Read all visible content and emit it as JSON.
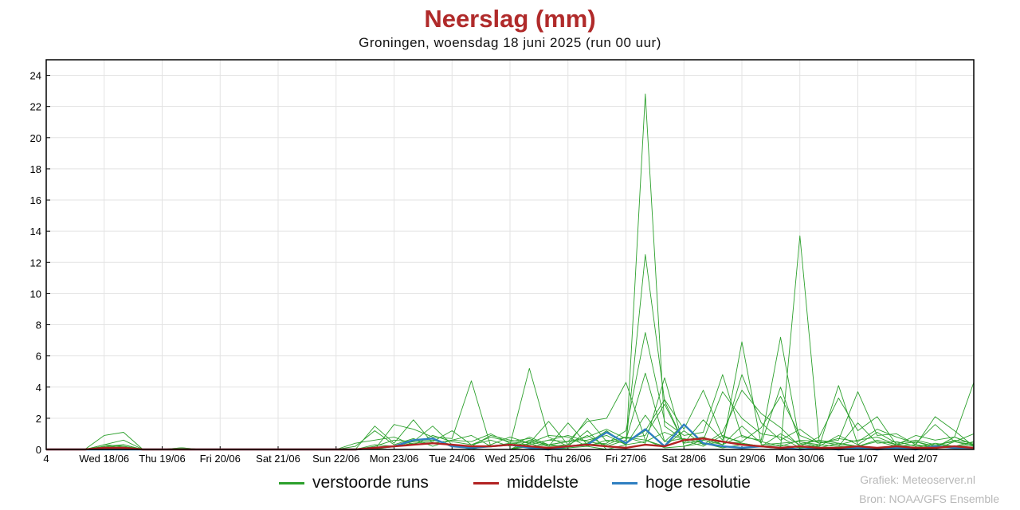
{
  "chart_data": {
    "type": "line",
    "title": "Neerslag (mm)",
    "subtitle": "Groningen, woensdag 18 juni 2025 (run 00 uur)",
    "ylim": [
      0,
      25
    ],
    "yticks": [
      0,
      2,
      4,
      6,
      8,
      10,
      12,
      14,
      16,
      18,
      20,
      22,
      24
    ],
    "xlim": [
      0,
      48
    ],
    "x_ticklabels": [
      {
        "x": 0,
        "label": "4"
      },
      {
        "x": 3,
        "label": "Wed 18/06"
      },
      {
        "x": 6,
        "label": "Thu 19/06"
      },
      {
        "x": 9,
        "label": "Fri 20/06"
      },
      {
        "x": 12,
        "label": "Sat 21/06"
      },
      {
        "x": 15,
        "label": "Sun 22/06"
      },
      {
        "x": 18,
        "label": "Mon 23/06"
      },
      {
        "x": 21,
        "label": "Tue 24/06"
      },
      {
        "x": 24,
        "label": "Wed 25/06"
      },
      {
        "x": 27,
        "label": "Thu 26/06"
      },
      {
        "x": 30,
        "label": "Fri 27/06"
      },
      {
        "x": 33,
        "label": "Sat 28/06"
      },
      {
        "x": 36,
        "label": "Sun 29/06"
      },
      {
        "x": 39,
        "label": "Mon 30/06"
      },
      {
        "x": 42,
        "label": "Tue 1/07"
      },
      {
        "x": 45,
        "label": "Wed 2/07"
      }
    ],
    "grid": true,
    "legend_position": "bottom",
    "series_colors": {
      "members": "#2ca02c",
      "mean": "#b22222",
      "hires": "#2f7fc1"
    },
    "legend": {
      "members_label": "verstoorde runs",
      "mean_label": "middelste",
      "hires_label": "hoge resolutie"
    },
    "members": [
      [
        0,
        0,
        0,
        0.3,
        0.2,
        0,
        0,
        0,
        0,
        0,
        0,
        0,
        0,
        0,
        0,
        0,
        0,
        0,
        0.2,
        0.5,
        0.6,
        0.3,
        0,
        0.3,
        0.8,
        0.4,
        0,
        0.1,
        0.2,
        0,
        0,
        22.8,
        1.5,
        0.6,
        0.2,
        0.9,
        0.4,
        0.2,
        0.3,
        0.1,
        0.3,
        0.2,
        0.1,
        0,
        0.1,
        0.1,
        0,
        0.5,
        0.2
      ],
      [
        0,
        0,
        0,
        0.9,
        1.1,
        0,
        0,
        0.1,
        0,
        0,
        0,
        0,
        0,
        0,
        0,
        0,
        0,
        0,
        1.6,
        1.3,
        0.8,
        0.7,
        4.4,
        0.2,
        0.3,
        5.2,
        0.8,
        0.2,
        1.2,
        0,
        0.3,
        12.5,
        3.1,
        0.4,
        0.6,
        3.7,
        2.0,
        1.0,
        0.8,
        0.1,
        0.2,
        0.9,
        0.3,
        0,
        0.3,
        0.5,
        0.1,
        0.8,
        0.3
      ],
      [
        0,
        0,
        0,
        0.3,
        0.6,
        0,
        0,
        0,
        0,
        0,
        0,
        0,
        0,
        0,
        0,
        0,
        0,
        1.5,
        0.4,
        1.9,
        0.4,
        0.6,
        0.9,
        0.2,
        0.4,
        0.5,
        0.2,
        1.7,
        0.3,
        0.4,
        1.2,
        7.5,
        1.8,
        0.9,
        1.1,
        4.8,
        0.8,
        0.6,
        7.2,
        0.4,
        0.1,
        0.4,
        0.2,
        0.5,
        0.2,
        0.3,
        0.1,
        0.2,
        0.1
      ],
      [
        0,
        0,
        0,
        0.2,
        0.1,
        0,
        0,
        0,
        0,
        0,
        0,
        0,
        0,
        0,
        0,
        0,
        0,
        0.3,
        0.2,
        0.4,
        0.5,
        1.2,
        0.3,
        0.8,
        0.5,
        0.7,
        0.2,
        0.3,
        0.9,
        0.2,
        0.6,
        4.9,
        0.5,
        1.6,
        0.3,
        1.1,
        3.8,
        2.3,
        1.4,
        0.2,
        0.8,
        3.3,
        1.2,
        2.1,
        0.3,
        0.9,
        0.6,
        0.8,
        4.3
      ],
      [
        0,
        0,
        0,
        0.1,
        0.3,
        0,
        0,
        0,
        0,
        0,
        0,
        0,
        0,
        0,
        0,
        0,
        0,
        0.2,
        0.6,
        0.5,
        1.5,
        0.3,
        0.2,
        0.9,
        0.6,
        0.4,
        0.9,
        0.8,
        0.2,
        0.6,
        0.4,
        1.2,
        3.2,
        1.3,
        3.8,
        0.8,
        0.5,
        1.4,
        3.4,
        0.9,
        0.4,
        0.6,
        3.7,
        0.9,
        1.0,
        0.3,
        2.1,
        1.2,
        0.2
      ],
      [
        0,
        0,
        0,
        0.2,
        0.3,
        0,
        0,
        0.1,
        0,
        0,
        0,
        0,
        0,
        0,
        0,
        0,
        0.2,
        1.2,
        0.3,
        0.7,
        0.2,
        0.6,
        0.5,
        1.0,
        0.4,
        0.3,
        0.6,
        0.5,
        0.8,
        1.3,
        0.7,
        0.9,
        2.9,
        0.4,
        1.9,
        0.6,
        4.8,
        1.7,
        0.6,
        1.3,
        0.4,
        0.7,
        0.5,
        1.3,
        0.8,
        0.4,
        1.6,
        0.5,
        1.0
      ],
      [
        0,
        0,
        0,
        0.1,
        0.2,
        0,
        0,
        0,
        0,
        0,
        0,
        0,
        0,
        0,
        0,
        0,
        0.4,
        0.6,
        0.8,
        0.3,
        0.9,
        0.5,
        0.3,
        0.6,
        0.2,
        0.8,
        0.3,
        0.5,
        0.6,
        0.9,
        0.3,
        0.5,
        1.1,
        0.6,
        0.8,
        0.3,
        0.9,
        0.5,
        0.2,
        0.6,
        0.5,
        0.3,
        0.6,
        0.8,
        0.3,
        0.5,
        0.2,
        0.6,
        0.4
      ]
    ],
    "members_tail": [
      [
        0.2,
        0.3,
        0.5,
        1.8,
        2.0,
        4.3,
        0.6,
        0.1,
        0.2,
        0.4,
        0.1,
        0.3,
        0.2,
        0.1,
        13.7,
        0.5,
        0.3,
        0.2,
        0.1,
        0.2,
        0.3,
        0.1,
        0.8,
        0.3
      ],
      [
        0.6,
        0.3,
        0.2,
        0.4,
        1.2,
        0.3,
        2.2,
        0.5,
        0.7,
        0.4,
        0.2,
        6.9,
        0.3,
        0.4,
        0.5,
        0.2,
        4.1,
        0.3,
        1.1,
        0.4,
        0.6,
        0.3,
        0.2,
        0.5
      ],
      [
        0.4,
        1.8,
        0.3,
        2.0,
        0.5,
        0.8,
        0.4,
        4.6,
        0.2,
        0.6,
        0.3,
        1.5,
        0.4,
        4.0,
        0.5,
        0.3,
        0.2,
        1.7,
        0.4,
        0.5,
        0.2,
        0.3,
        0.5,
        0.3
      ],
      [
        0.3,
        0.6,
        0.9,
        0.5,
        0.3,
        0.8,
        0.6,
        0.2,
        1.2,
        0.3,
        0.5,
        0.4,
        0.2,
        1.0,
        0.3,
        0.6,
        0.4,
        0.2,
        0.6,
        0.3,
        0.1,
        0.4,
        0.2,
        0.3
      ]
    ],
    "mean": [
      0,
      0,
      0,
      0.1,
      0.1,
      0,
      0,
      0,
      0,
      0,
      0,
      0,
      0,
      0,
      0,
      0,
      0,
      0.1,
      0.2,
      0.3,
      0.4,
      0.3,
      0.2,
      0.2,
      0.3,
      0.2,
      0.1,
      0.2,
      0.3,
      0.6,
      1.5,
      0.6,
      0.4,
      0.5,
      0.7,
      0.5,
      0.3,
      0.3,
      0.5,
      0.2,
      0.1,
      0.2,
      0.3,
      0.2,
      0.1,
      0.2,
      0.4,
      0.2,
      0.3
    ],
    "mean_tail": [
      0.2,
      0.1,
      0.2,
      0.3,
      0.2,
      0.1,
      0.3,
      0.2,
      0.6,
      0.7,
      0.5,
      0.3,
      0.2,
      0.1,
      0.2,
      0.1,
      0.1,
      0.2,
      0.1,
      0.2,
      0.1,
      0.1,
      0.2,
      0.1
    ],
    "hires": [
      0,
      0,
      0,
      0,
      0,
      0,
      0,
      0,
      0,
      0,
      0,
      0,
      0,
      0,
      0,
      0,
      0,
      0.1,
      0.2,
      0.6,
      0.7,
      0.2,
      0.1,
      0.2,
      0.3,
      0.1,
      0,
      0.2,
      0.3,
      1.1,
      0.4,
      1.3,
      0.2,
      1.6,
      0.4,
      0.2,
      0.1,
      0.2,
      0.1,
      0,
      0.1,
      0,
      0.1,
      0,
      0.1,
      0,
      0.2,
      0.1,
      0.1
    ]
  },
  "credits": {
    "line1": "Grafiek: Meteoserver.nl",
    "line2": "Bron: NOAA/GFS Ensemble"
  }
}
